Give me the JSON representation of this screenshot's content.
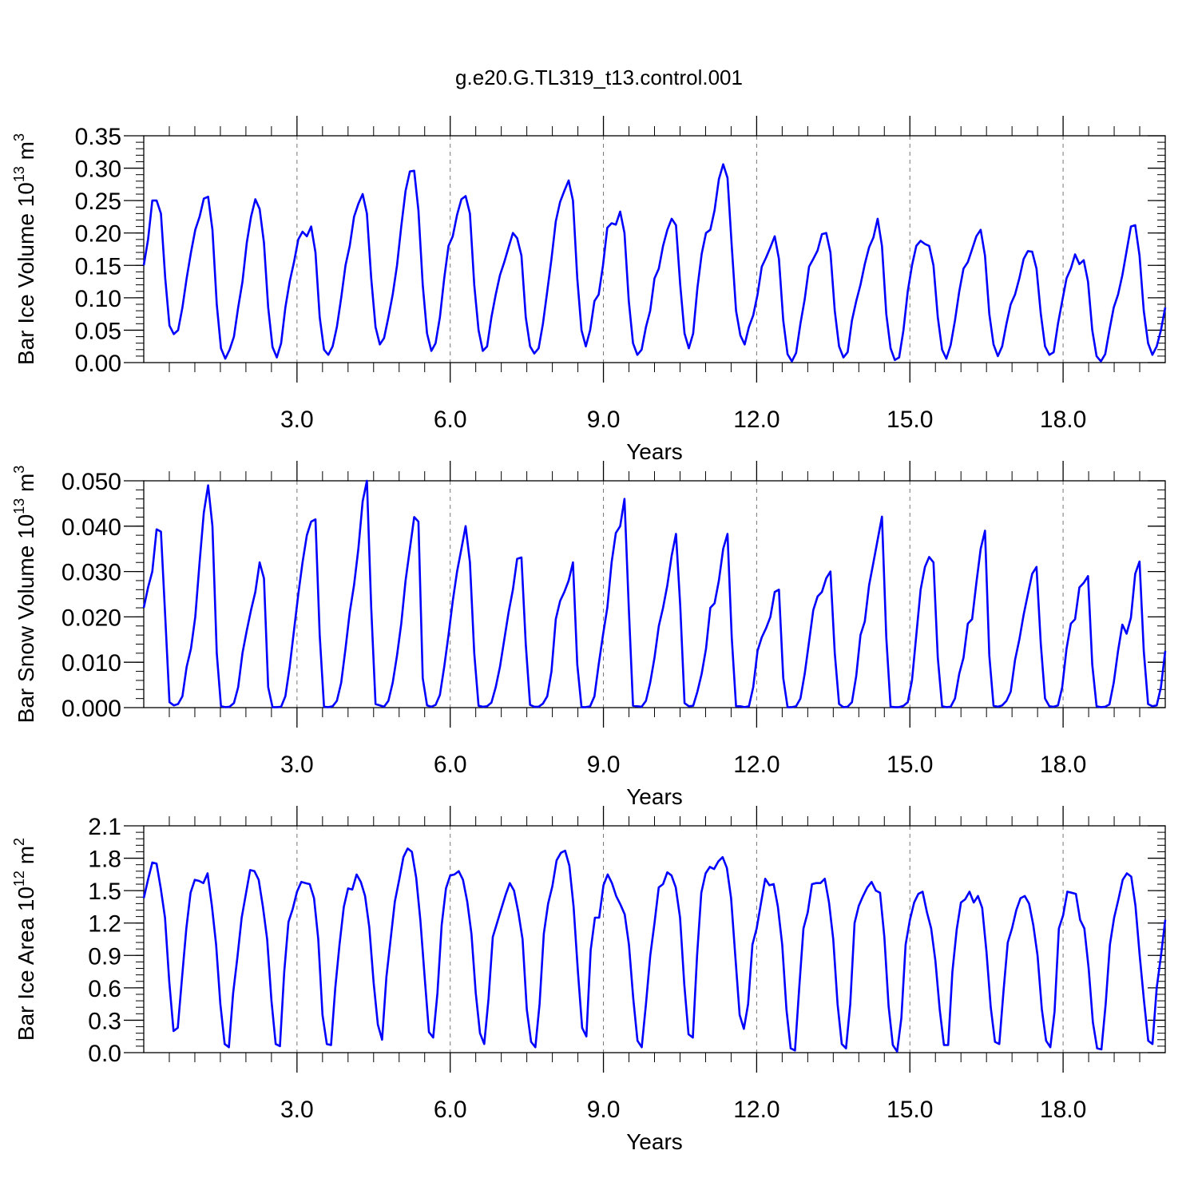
{
  "title": "g.e20.G.TL319_t13.control.001",
  "series_color": "#0000ff",
  "chart_data": [
    {
      "type": "line",
      "ylabel": "Bar Ice Volume 10",
      "ylabel_exp": "13",
      "ylabel_unit": " m",
      "ylabel_unit_exp": "3",
      "xlabel": "Years",
      "xlim": [
        0,
        20
      ],
      "ylim": [
        0,
        0.35
      ],
      "x_ticks": [
        3,
        6,
        9,
        12,
        15,
        18
      ],
      "x_tick_labels": [
        "3.0",
        "6.0",
        "9.0",
        "12.0",
        "15.0",
        "18.0"
      ],
      "y_ticks": [
        0,
        0.05,
        0.1,
        0.15,
        0.2,
        0.25,
        0.3,
        0.35
      ],
      "y_tick_labels": [
        "0.00",
        "0.05",
        "0.10",
        "0.15",
        "0.20",
        "0.25",
        "0.30",
        "0.35"
      ],
      "y_minor_step": 0.01,
      "grid": "vertical-dashed",
      "values": [
        0.15,
        0.19,
        0.25,
        0.25,
        0.23,
        0.13,
        0.057,
        0.044,
        0.05,
        0.085,
        0.13,
        0.17,
        0.205,
        0.225,
        0.253,
        0.256,
        0.205,
        0.09,
        0.022,
        0.006,
        0.02,
        0.04,
        0.085,
        0.125,
        0.185,
        0.225,
        0.252,
        0.237,
        0.185,
        0.085,
        0.024,
        0.008,
        0.03,
        0.085,
        0.125,
        0.155,
        0.19,
        0.202,
        0.195,
        0.21,
        0.17,
        0.07,
        0.02,
        0.012,
        0.025,
        0.055,
        0.1,
        0.15,
        0.18,
        0.225,
        0.245,
        0.26,
        0.23,
        0.13,
        0.055,
        0.028,
        0.038,
        0.07,
        0.105,
        0.15,
        0.21,
        0.265,
        0.295,
        0.296,
        0.235,
        0.12,
        0.045,
        0.018,
        0.03,
        0.07,
        0.13,
        0.18,
        0.195,
        0.228,
        0.252,
        0.257,
        0.23,
        0.12,
        0.05,
        0.018,
        0.025,
        0.07,
        0.105,
        0.135,
        0.155,
        0.178,
        0.2,
        0.192,
        0.165,
        0.07,
        0.025,
        0.014,
        0.022,
        0.06,
        0.11,
        0.16,
        0.218,
        0.248,
        0.265,
        0.281,
        0.25,
        0.13,
        0.05,
        0.025,
        0.05,
        0.095,
        0.105,
        0.15,
        0.208,
        0.215,
        0.213,
        0.233,
        0.2,
        0.095,
        0.03,
        0.012,
        0.02,
        0.055,
        0.08,
        0.13,
        0.145,
        0.18,
        0.205,
        0.222,
        0.212,
        0.12,
        0.045,
        0.022,
        0.045,
        0.115,
        0.168,
        0.2,
        0.205,
        0.235,
        0.283,
        0.306,
        0.285,
        0.18,
        0.08,
        0.042,
        0.028,
        0.055,
        0.073,
        0.105,
        0.148,
        0.162,
        0.178,
        0.195,
        0.16,
        0.065,
        0.013,
        0.002,
        0.015,
        0.06,
        0.098,
        0.148,
        0.16,
        0.173,
        0.198,
        0.2,
        0.17,
        0.08,
        0.025,
        0.008,
        0.016,
        0.065,
        0.095,
        0.12,
        0.152,
        0.178,
        0.193,
        0.222,
        0.18,
        0.075,
        0.022,
        0.004,
        0.008,
        0.05,
        0.11,
        0.15,
        0.18,
        0.188,
        0.183,
        0.18,
        0.15,
        0.07,
        0.02,
        0.006,
        0.027,
        0.065,
        0.11,
        0.145,
        0.155,
        0.175,
        0.195,
        0.205,
        0.165,
        0.075,
        0.028,
        0.01,
        0.025,
        0.06,
        0.09,
        0.105,
        0.13,
        0.16,
        0.172,
        0.171,
        0.145,
        0.075,
        0.025,
        0.012,
        0.016,
        0.06,
        0.095,
        0.13,
        0.145,
        0.167,
        0.152,
        0.158,
        0.125,
        0.05,
        0.01,
        0.002,
        0.013,
        0.05,
        0.085,
        0.105,
        0.135,
        0.172,
        0.21,
        0.212,
        0.165,
        0.08,
        0.03,
        0.012,
        0.025,
        0.05,
        0.085
      ]
    },
    {
      "type": "line",
      "ylabel": "Bar Snow Volume 10",
      "ylabel_exp": "13",
      "ylabel_unit": " m",
      "ylabel_unit_exp": "3",
      "xlabel": "Years",
      "xlim": [
        0,
        20
      ],
      "ylim": [
        0,
        0.05
      ],
      "x_ticks": [
        3,
        6,
        9,
        12,
        15,
        18
      ],
      "x_tick_labels": [
        "3.0",
        "6.0",
        "9.0",
        "12.0",
        "15.0",
        "18.0"
      ],
      "y_ticks": [
        0,
        0.01,
        0.02,
        0.03,
        0.04,
        0.05
      ],
      "y_tick_labels": [
        "0.000",
        "0.010",
        "0.020",
        "0.030",
        "0.040",
        "0.050"
      ],
      "y_minor_step": 0.002,
      "grid": "vertical-dashed",
      "values": [
        0.022,
        0.0265,
        0.03,
        0.0393,
        0.0388,
        0.02,
        0.0012,
        0.0005,
        0.0008,
        0.0025,
        0.009,
        0.013,
        0.02,
        0.032,
        0.043,
        0.049,
        0.04,
        0.012,
        0.0003,
        0.0001,
        0.0002,
        0.001,
        0.0045,
        0.012,
        0.017,
        0.0215,
        0.0255,
        0.032,
        0.0285,
        0.0045,
        0.0001,
        0.0001,
        0.0002,
        0.0025,
        0.009,
        0.017,
        0.025,
        0.032,
        0.038,
        0.041,
        0.0415,
        0.016,
        0.0002,
        0.0001,
        0.0003,
        0.0015,
        0.0055,
        0.013,
        0.021,
        0.027,
        0.035,
        0.0455,
        0.05,
        0.022,
        0.0008,
        0.0005,
        0.0002,
        0.0015,
        0.0055,
        0.0115,
        0.0185,
        0.028,
        0.035,
        0.042,
        0.041,
        0.0065,
        0.0005,
        0.0002,
        0.0006,
        0.0028,
        0.009,
        0.016,
        0.0235,
        0.03,
        0.035,
        0.04,
        0.032,
        0.012,
        0.0004,
        0.0002,
        0.0003,
        0.0011,
        0.0045,
        0.009,
        0.015,
        0.021,
        0.026,
        0.0328,
        0.0331,
        0.014,
        0.0006,
        0.0002,
        0.0002,
        0.0009,
        0.0025,
        0.008,
        0.0195,
        0.0235,
        0.0255,
        0.028,
        0.032,
        0.0095,
        0.0001,
        0.0001,
        0.0003,
        0.0025,
        0.0095,
        0.016,
        0.022,
        0.032,
        0.0385,
        0.04,
        0.046,
        0.022,
        0.0004,
        0.0003,
        0.0002,
        0.0015,
        0.0055,
        0.011,
        0.018,
        0.022,
        0.027,
        0.0335,
        0.0383,
        0.0225,
        0.001,
        0.0003,
        0.0004,
        0.0035,
        0.0075,
        0.013,
        0.022,
        0.023,
        0.028,
        0.035,
        0.0383,
        0.0155,
        0.0003,
        0.0003,
        0.0001,
        0.0003,
        0.0045,
        0.0125,
        0.0155,
        0.0175,
        0.02,
        0.0255,
        0.026,
        0.0065,
        0.0001,
        0.0001,
        0.0003,
        0.002,
        0.0075,
        0.0145,
        0.0215,
        0.0245,
        0.0255,
        0.0285,
        0.03,
        0.012,
        0.0008,
        0.0001,
        0.0002,
        0.0012,
        0.007,
        0.016,
        0.019,
        0.027,
        0.032,
        0.037,
        0.0421,
        0.0155,
        0.0002,
        0.0001,
        0.0001,
        0.0004,
        0.0012,
        0.006,
        0.016,
        0.026,
        0.031,
        0.0332,
        0.032,
        0.011,
        0.0003,
        0.0001,
        0.0002,
        0.002,
        0.0075,
        0.011,
        0.0185,
        0.0195,
        0.0275,
        0.035,
        0.039,
        0.0115,
        0.0004,
        0.0002,
        0.0005,
        0.0015,
        0.0035,
        0.0105,
        0.015,
        0.0205,
        0.025,
        0.0295,
        0.031,
        0.014,
        0.002,
        0.0003,
        0.0002,
        0.0005,
        0.0045,
        0.013,
        0.0185,
        0.0195,
        0.0265,
        0.0275,
        0.029,
        0.0095,
        0.0003,
        0.0001,
        0.0002,
        0.0007,
        0.0055,
        0.0125,
        0.0183,
        0.0163,
        0.0198,
        0.0295,
        0.0322,
        0.0125,
        0.0008,
        0.0003,
        0.0005,
        0.0045,
        0.0125
      ]
    },
    {
      "type": "line",
      "ylabel": "Bar Ice Area 10",
      "ylabel_exp": "12",
      "ylabel_unit": " m",
      "ylabel_unit_exp": "2",
      "xlabel": "Years",
      "xlim": [
        0,
        20
      ],
      "ylim": [
        0,
        2.1
      ],
      "x_ticks": [
        3,
        6,
        9,
        12,
        15,
        18
      ],
      "x_tick_labels": [
        "3.0",
        "6.0",
        "9.0",
        "12.0",
        "15.0",
        "18.0"
      ],
      "y_ticks": [
        0,
        0.3,
        0.6,
        0.9,
        1.2,
        1.5,
        1.8,
        2.1
      ],
      "y_tick_labels": [
        "0.0",
        "0.3",
        "0.6",
        "0.9",
        "1.2",
        "1.5",
        "1.8",
        "2.1"
      ],
      "y_minor_step": 0.06,
      "grid": "vertical-dashed",
      "values": [
        1.43,
        1.6,
        1.76,
        1.75,
        1.52,
        1.25,
        0.65,
        0.2,
        0.23,
        0.7,
        1.15,
        1.48,
        1.6,
        1.59,
        1.57,
        1.66,
        1.36,
        1.0,
        0.45,
        0.08,
        0.05,
        0.55,
        0.88,
        1.25,
        1.47,
        1.69,
        1.68,
        1.6,
        1.35,
        1.05,
        0.48,
        0.08,
        0.06,
        0.75,
        1.21,
        1.33,
        1.49,
        1.58,
        1.57,
        1.56,
        1.43,
        1.05,
        0.35,
        0.08,
        0.07,
        0.6,
        1.0,
        1.35,
        1.52,
        1.51,
        1.65,
        1.58,
        1.45,
        1.16,
        0.65,
        0.26,
        0.12,
        0.7,
        1.05,
        1.4,
        1.6,
        1.81,
        1.89,
        1.86,
        1.62,
        1.22,
        0.7,
        0.19,
        0.14,
        0.55,
        1.18,
        1.52,
        1.64,
        1.65,
        1.68,
        1.6,
        1.4,
        1.1,
        0.55,
        0.18,
        0.08,
        0.5,
        1.07,
        1.2,
        1.33,
        1.46,
        1.57,
        1.5,
        1.3,
        1.05,
        0.4,
        0.1,
        0.05,
        0.45,
        1.1,
        1.38,
        1.54,
        1.78,
        1.85,
        1.87,
        1.73,
        1.35,
        0.75,
        0.23,
        0.15,
        0.95,
        1.25,
        1.25,
        1.55,
        1.65,
        1.57,
        1.45,
        1.37,
        1.28,
        1.0,
        0.5,
        0.11,
        0.05,
        0.45,
        0.9,
        1.2,
        1.53,
        1.56,
        1.67,
        1.64,
        1.53,
        1.25,
        0.63,
        0.17,
        0.14,
        0.9,
        1.48,
        1.66,
        1.72,
        1.7,
        1.77,
        1.81,
        1.71,
        1.43,
        0.88,
        0.35,
        0.22,
        0.45,
        1.0,
        1.15,
        1.38,
        1.61,
        1.55,
        1.56,
        1.35,
        1.0,
        0.4,
        0.04,
        0.02,
        0.6,
        1.15,
        1.3,
        1.56,
        1.57,
        1.57,
        1.61,
        1.39,
        1.05,
        0.45,
        0.08,
        0.04,
        0.45,
        1.2,
        1.36,
        1.45,
        1.53,
        1.58,
        1.5,
        1.48,
        1.07,
        0.43,
        0.07,
        0.01,
        0.32,
        1.0,
        1.23,
        1.39,
        1.47,
        1.49,
        1.3,
        1.15,
        0.85,
        0.4,
        0.07,
        0.07,
        0.75,
        1.14,
        1.39,
        1.42,
        1.49,
        1.39,
        1.45,
        1.34,
        0.93,
        0.42,
        0.1,
        0.08,
        0.57,
        1.02,
        1.15,
        1.32,
        1.43,
        1.45,
        1.38,
        1.18,
        0.9,
        0.4,
        0.11,
        0.05,
        0.38,
        1.15,
        1.27,
        1.49,
        1.48,
        1.47,
        1.23,
        1.15,
        0.78,
        0.28,
        0.04,
        0.03,
        0.45,
        1.0,
        1.25,
        1.42,
        1.6,
        1.66,
        1.63,
        1.36,
        0.9,
        0.48,
        0.11,
        0.08,
        0.6,
        0.9,
        1.23
      ]
    }
  ]
}
